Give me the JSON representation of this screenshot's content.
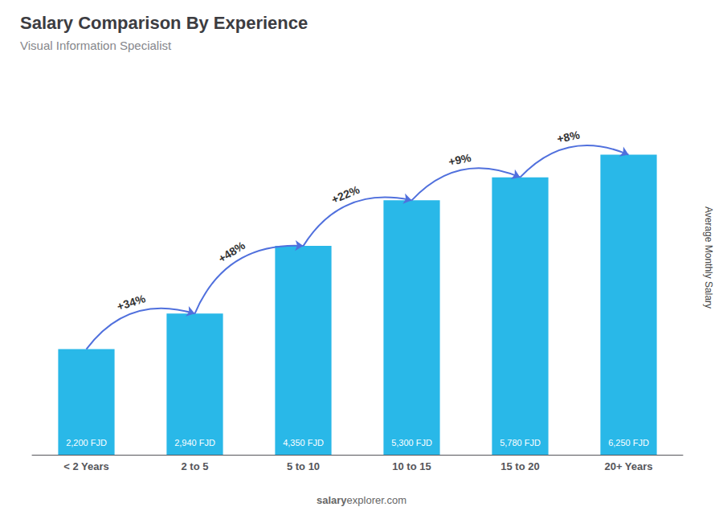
{
  "chart_data": {
    "type": "bar",
    "title": "Salary Comparison By Experience",
    "subtitle": "Visual Information Specialist",
    "categories": [
      "< 2 Years",
      "2 to 5",
      "5 to 10",
      "10 to 15",
      "15 to 20",
      "20+ Years"
    ],
    "values": [
      2200,
      2940,
      4350,
      5300,
      5780,
      6250
    ],
    "value_labels": [
      "2,200 FJD",
      "2,940 FJD",
      "4,350 FJD",
      "5,300 FJD",
      "5,780 FJD",
      "6,250 FJD"
    ],
    "data_labels": true,
    "color": "#29b8e8",
    "ylim": [
      0,
      7800
    ],
    "ylabel": "Average Monthly Salary",
    "annotations": [
      "+34%",
      "+48%",
      "+22%",
      "+9%",
      "+8%"
    ],
    "footer": [
      "salary",
      "explorer.com"
    ],
    "tick_labels": "x",
    "grid": false
  }
}
